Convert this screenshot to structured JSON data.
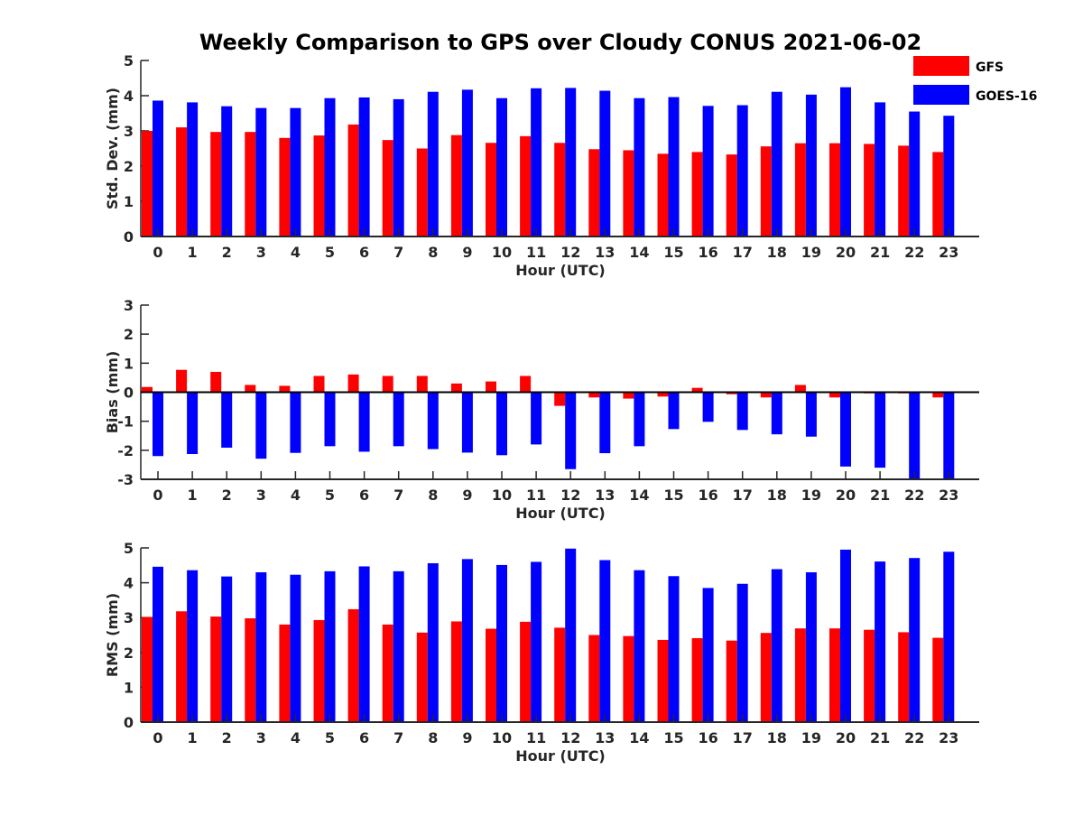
{
  "title": "Weekly Comparison to GPS over Cloudy CONUS 2021-06-02",
  "legend": {
    "placement": "top-right",
    "entries": [
      {
        "name": "GFS",
        "color": "#ff0000"
      },
      {
        "name": "GOES-16",
        "color": "#0000ff"
      }
    ]
  },
  "chart_data": [
    {
      "type": "bar",
      "xlabel": "Hour (UTC)",
      "ylabel": "Std. Dev. (mm)",
      "ylim": [
        0,
        5
      ],
      "yticks": [
        0,
        1,
        2,
        3,
        4,
        5
      ],
      "zero_line": false,
      "categories": [
        "0",
        "1",
        "2",
        "3",
        "4",
        "5",
        "6",
        "7",
        "8",
        "9",
        "10",
        "11",
        "12",
        "13",
        "14",
        "15",
        "16",
        "17",
        "18",
        "19",
        "20",
        "21",
        "22",
        "23"
      ],
      "series": [
        {
          "name": "GFS",
          "color": "#ff0000",
          "values": [
            3.0,
            3.1,
            2.97,
            2.97,
            2.8,
            2.87,
            3.18,
            2.74,
            2.5,
            2.88,
            2.66,
            2.85,
            2.66,
            2.48,
            2.45,
            2.35,
            2.4,
            2.33,
            2.56,
            2.65,
            2.65,
            2.63,
            2.58,
            2.4
          ]
        },
        {
          "name": "GOES-16",
          "color": "#0000ff",
          "values": [
            3.86,
            3.81,
            3.7,
            3.65,
            3.65,
            3.93,
            3.95,
            3.9,
            4.11,
            4.17,
            3.93,
            4.21,
            4.22,
            4.14,
            3.93,
            3.96,
            3.71,
            3.73,
            4.11,
            4.03,
            4.24,
            3.81,
            3.55,
            3.43
          ]
        }
      ]
    },
    {
      "type": "bar",
      "xlabel": "Hour (UTC)",
      "ylabel": "Bias (mm)",
      "ylim": [
        -3,
        3
      ],
      "yticks": [
        -3,
        -2,
        -1,
        0,
        1,
        2,
        3
      ],
      "zero_line": true,
      "categories": [
        "0",
        "1",
        "2",
        "3",
        "4",
        "5",
        "6",
        "7",
        "8",
        "9",
        "10",
        "11",
        "12",
        "13",
        "14",
        "15",
        "16",
        "17",
        "18",
        "19",
        "20",
        "21",
        "22",
        "23"
      ],
      "series": [
        {
          "name": "GFS",
          "color": "#ff0000",
          "values": [
            0.18,
            0.77,
            0.7,
            0.25,
            0.22,
            0.56,
            0.61,
            0.56,
            0.56,
            0.3,
            0.37,
            0.56,
            -0.47,
            -0.18,
            -0.22,
            -0.15,
            0.15,
            -0.07,
            -0.18,
            0.25,
            -0.18,
            -0.04,
            -0.04,
            -0.18
          ]
        },
        {
          "name": "GOES-16",
          "color": "#0000ff",
          "values": [
            -2.2,
            -2.13,
            -1.91,
            -2.29,
            -2.09,
            -1.86,
            -2.05,
            -1.86,
            -1.96,
            -2.08,
            -2.17,
            -1.8,
            -2.65,
            -2.1,
            -1.86,
            -1.27,
            -1.02,
            -1.3,
            -1.45,
            -1.53,
            -2.56,
            -2.6,
            -3.0,
            -3.0
          ]
        }
      ]
    },
    {
      "type": "bar",
      "xlabel": "Hour (UTC)",
      "ylabel": "RMS (mm)",
      "ylim": [
        0,
        5
      ],
      "yticks": [
        0,
        1,
        2,
        3,
        4,
        5
      ],
      "zero_line": false,
      "categories": [
        "0",
        "1",
        "2",
        "3",
        "4",
        "5",
        "6",
        "7",
        "8",
        "9",
        "10",
        "11",
        "12",
        "13",
        "14",
        "15",
        "16",
        "17",
        "18",
        "19",
        "20",
        "21",
        "22",
        "23"
      ],
      "series": [
        {
          "name": "GFS",
          "color": "#ff0000",
          "values": [
            3.02,
            3.18,
            3.03,
            2.98,
            2.8,
            2.93,
            3.24,
            2.8,
            2.57,
            2.89,
            2.68,
            2.88,
            2.71,
            2.5,
            2.47,
            2.36,
            2.41,
            2.34,
            2.56,
            2.69,
            2.69,
            2.65,
            2.58,
            2.42
          ]
        },
        {
          "name": "GOES-16",
          "color": "#0000ff",
          "values": [
            4.46,
            4.36,
            4.18,
            4.3,
            4.23,
            4.33,
            4.47,
            4.33,
            4.56,
            4.68,
            4.51,
            4.6,
            4.98,
            4.65,
            4.36,
            4.19,
            3.85,
            3.97,
            4.39,
            4.3,
            4.95,
            4.61,
            4.71,
            4.89
          ]
        }
      ]
    }
  ]
}
